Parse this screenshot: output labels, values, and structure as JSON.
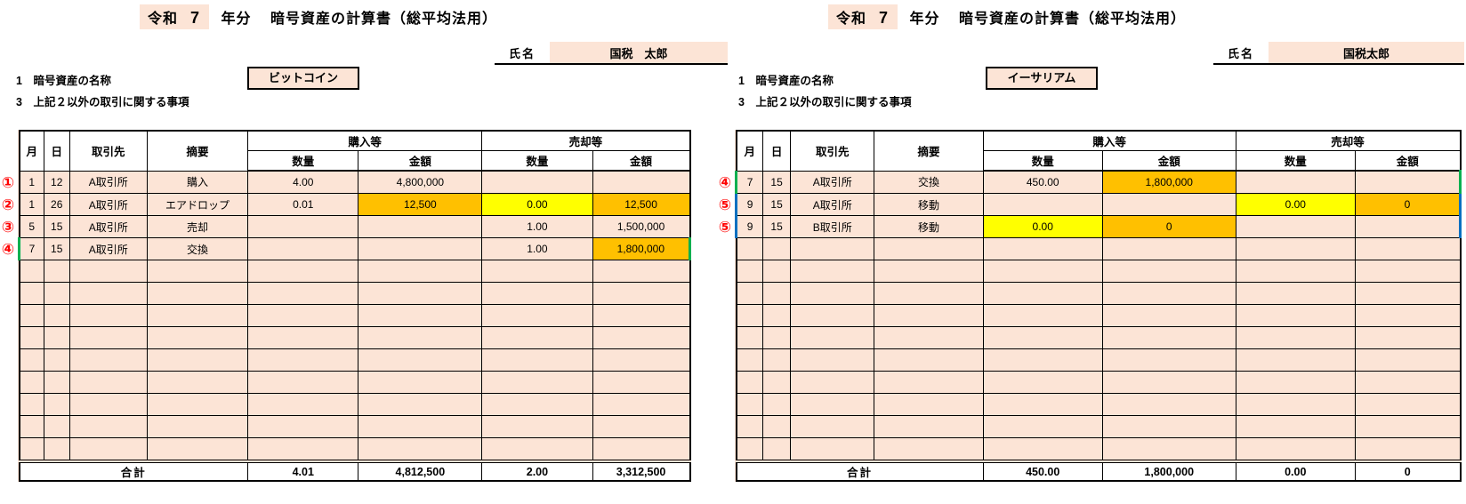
{
  "colors": {
    "cell_peach": "#FCE4D6",
    "highlight_orange": "#FFC000",
    "highlight_yellow": "#FFFF00",
    "outline_green": "#00B050",
    "outline_blue": "#0070C0",
    "marker_red": "#FF0000"
  },
  "panels": [
    {
      "asset": "bitcoin-sheet",
      "title": {
        "era": "令和",
        "year": "7",
        "suffix": "年分",
        "main": "暗号資産の計算書（総平均法用）"
      },
      "name_field": {
        "label": "氏名",
        "value": "国税　太郎"
      },
      "item1_label": "1　暗号資産の名称",
      "asset_name": "ビットコイン",
      "item3_label": "3　上記２以外の取引に関する事項",
      "table": {
        "headers": {
          "month": "月",
          "day": "日",
          "partner": "取引先",
          "note": "摘要",
          "purchase": "購入等",
          "sale": "売却等",
          "qty": "数量",
          "amount": "金額"
        },
        "rows": [
          {
            "marker": "①",
            "month": "1",
            "day": "12",
            "partner": "A取引所",
            "note": "購入",
            "p_qty": "4.00",
            "p_amt": "4,800,000",
            "s_qty": "",
            "s_amt": "",
            "highlights": {},
            "border": ""
          },
          {
            "marker": "②",
            "month": "1",
            "day": "26",
            "partner": "A取引所",
            "note": "エアドロップ",
            "p_qty": "0.01",
            "p_amt": "12,500",
            "s_qty": "0.00",
            "s_amt": "12,500",
            "highlights": {
              "p_amt": "orange",
              "s_qty": "yellow",
              "s_amt": "orange"
            },
            "border": ""
          },
          {
            "marker": "③",
            "month": "5",
            "day": "15",
            "partner": "A取引所",
            "note": "売却",
            "p_qty": "",
            "p_amt": "",
            "s_qty": "1.00",
            "s_amt": "1,500,000",
            "highlights": {},
            "border": ""
          },
          {
            "marker": "④",
            "month": "7",
            "day": "15",
            "partner": "A取引所",
            "note": "交換",
            "p_qty": "",
            "p_amt": "",
            "s_qty": "1.00",
            "s_amt": "1,800,000",
            "highlights": {
              "s_amt": "orange"
            },
            "border": "green"
          }
        ],
        "empty_row_count": 9,
        "total": {
          "label": "合計",
          "p_qty": "4.01",
          "p_amt": "4,812,500",
          "s_qty": "2.00",
          "s_amt": "3,312,500"
        }
      }
    },
    {
      "asset": "ethereum-sheet",
      "title": {
        "era": "令和",
        "year": "7",
        "suffix": "年分",
        "main": "暗号資産の計算書（総平均法用）"
      },
      "name_field": {
        "label": "氏名",
        "value": "国税太郎"
      },
      "item1_label": "1　暗号資産の名称",
      "asset_name": "イーサリアム",
      "item3_label": "3　上記２以外の取引に関する事項",
      "table": {
        "headers": {
          "month": "月",
          "day": "日",
          "partner": "取引先",
          "note": "摘要",
          "purchase": "購入等",
          "sale": "売却等",
          "qty": "数量",
          "amount": "金額"
        },
        "rows": [
          {
            "marker": "④",
            "month": "7",
            "day": "15",
            "partner": "A取引所",
            "note": "交換",
            "p_qty": "450.00",
            "p_amt": "1,800,000",
            "s_qty": "",
            "s_amt": "",
            "highlights": {
              "p_amt": "orange"
            },
            "border": "green"
          },
          {
            "marker": "⑤",
            "month": "9",
            "day": "15",
            "partner": "A取引所",
            "note": "移動",
            "p_qty": "",
            "p_amt": "",
            "s_qty": "0.00",
            "s_amt": "0",
            "highlights": {
              "s_qty": "yellow",
              "s_amt": "orange"
            },
            "border": "blue-top"
          },
          {
            "marker": "⑤",
            "month": "9",
            "day": "15",
            "partner": "B取引所",
            "note": "移動",
            "p_qty": "0.00",
            "p_amt": "0",
            "s_qty": "",
            "s_amt": "",
            "highlights": {
              "p_qty": "yellow",
              "p_amt": "orange"
            },
            "border": "blue-bottom"
          }
        ],
        "empty_row_count": 10,
        "total": {
          "label": "合計",
          "p_qty": "450.00",
          "p_amt": "1,800,000",
          "s_qty": "0.00",
          "s_amt": "0"
        }
      }
    }
  ]
}
